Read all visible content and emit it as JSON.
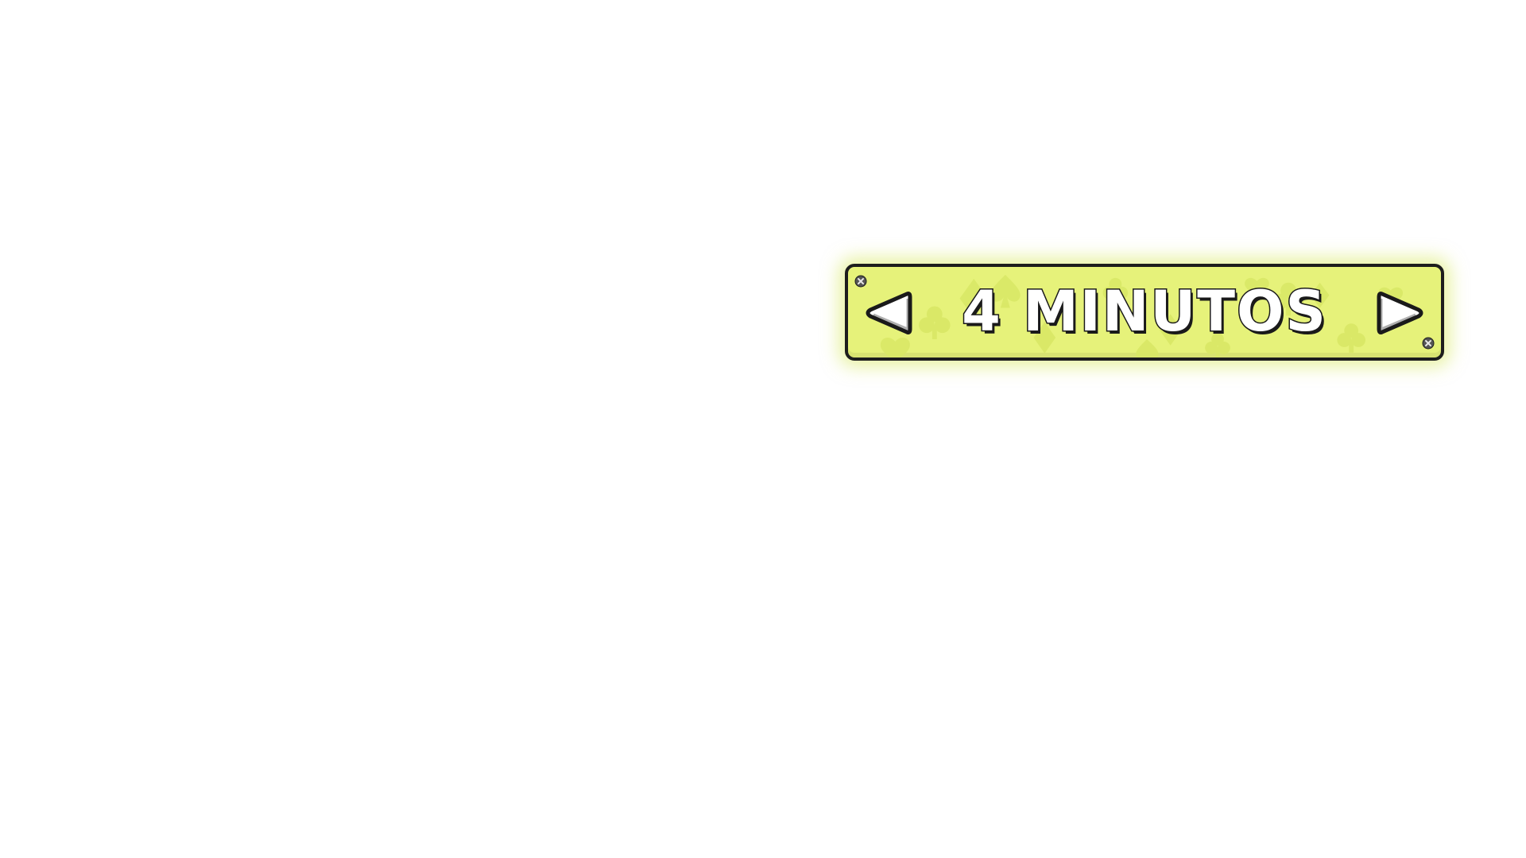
{
  "selector": {
    "value": "4 MINUTOS",
    "prev_icon": "arrow-left-icon",
    "next_icon": "arrow-right-icon",
    "corner_icon": "screw-icon",
    "pattern_icon": "card-suits-pattern"
  },
  "colors": {
    "panel_fill": "#e6f27a",
    "panel_glow": "#d6e85a",
    "border": "#1d1d1d",
    "text_fill": "#ffffff",
    "text_outline": "#1a1a1a"
  }
}
